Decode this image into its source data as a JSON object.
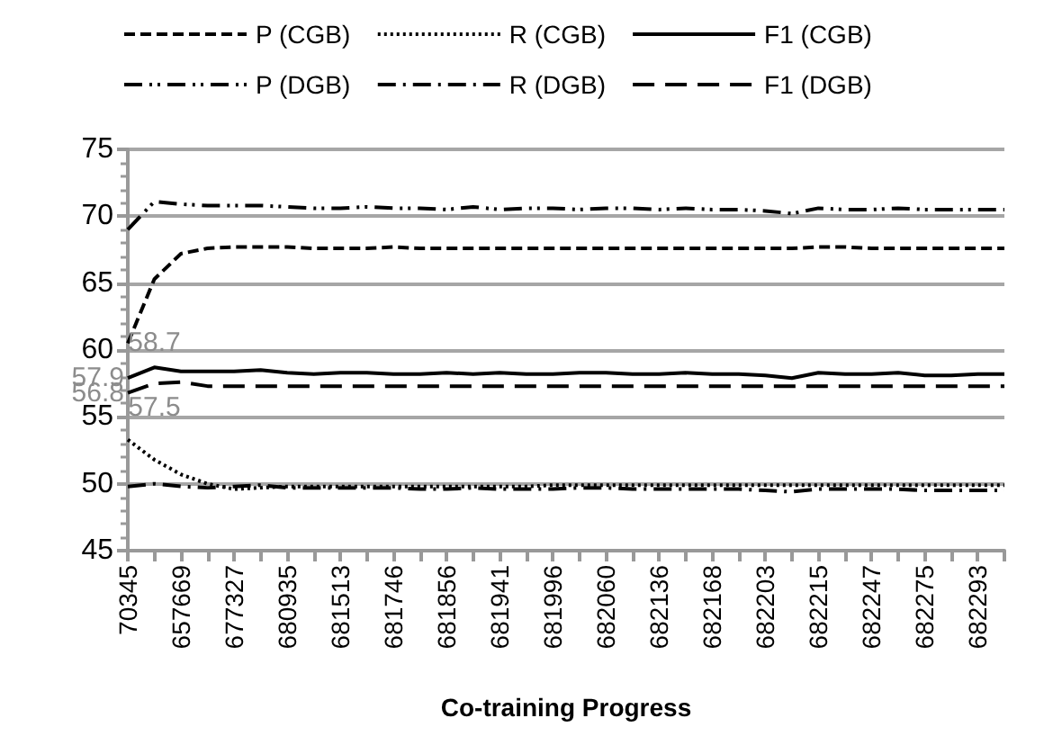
{
  "chart_data": {
    "type": "line",
    "xlabel": "Co-training Progress",
    "categories": [
      "70345",
      null,
      "657669",
      null,
      "677327",
      null,
      "680935",
      null,
      "681513",
      null,
      "681746",
      null,
      "681856",
      null,
      "681941",
      null,
      "681996",
      null,
      "682060",
      null,
      "682136",
      null,
      "682168",
      null,
      "682203",
      null,
      "682215",
      null,
      "682247",
      null,
      "682275",
      null,
      "682293",
      null
    ],
    "series": [
      {
        "name": "P (CGB)",
        "color": "#000000",
        "line_style": "dashed",
        "values": [
          60.5,
          65.3,
          67.2,
          67.6,
          67.7,
          67.7,
          67.7,
          67.6,
          67.6,
          67.6,
          67.7,
          67.6,
          67.6,
          67.6,
          67.6,
          67.6,
          67.6,
          67.6,
          67.6,
          67.6,
          67.6,
          67.6,
          67.6,
          67.6,
          67.6,
          67.6,
          67.7,
          67.7,
          67.6,
          67.6,
          67.6,
          67.6,
          67.6,
          67.6
        ]
      },
      {
        "name": "R (CGB)",
        "color": "#000000",
        "line_style": "dotted",
        "values": [
          53.3,
          51.8,
          50.7,
          50.0,
          49.6,
          49.7,
          49.8,
          49.8,
          49.8,
          49.8,
          49.8,
          49.8,
          49.8,
          49.8,
          49.8,
          49.8,
          49.9,
          49.9,
          49.9,
          49.9,
          49.9,
          49.9,
          49.9,
          49.9,
          49.9,
          49.9,
          49.9,
          49.9,
          49.9,
          49.9,
          49.9,
          49.9,
          49.9,
          49.9
        ]
      },
      {
        "name": "F1 (CGB)",
        "color": "#000000",
        "line_style": "solid",
        "value_labels": [
          "57.9",
          "58.7",
          null,
          null,
          null,
          null,
          null,
          null,
          null,
          null,
          null,
          null,
          null,
          null,
          null,
          null,
          null,
          null,
          null,
          null,
          null,
          null,
          null,
          null,
          null,
          null,
          null,
          null,
          null,
          null,
          null,
          null,
          null,
          null
        ],
        "values": [
          57.9,
          58.7,
          58.4,
          58.4,
          58.4,
          58.5,
          58.3,
          58.2,
          58.3,
          58.3,
          58.2,
          58.2,
          58.3,
          58.2,
          58.3,
          58.2,
          58.2,
          58.3,
          58.3,
          58.2,
          58.2,
          58.3,
          58.2,
          58.2,
          58.1,
          57.9,
          58.3,
          58.2,
          58.2,
          58.3,
          58.1,
          58.1,
          58.2,
          58.2
        ]
      },
      {
        "name": "P (DGB)",
        "color": "#000000",
        "line_style": "dashdotdot",
        "values": [
          69.0,
          71.1,
          70.9,
          70.8,
          70.8,
          70.8,
          70.7,
          70.6,
          70.6,
          70.7,
          70.6,
          70.6,
          70.5,
          70.7,
          70.5,
          70.6,
          70.6,
          70.5,
          70.6,
          70.6,
          70.5,
          70.6,
          70.5,
          70.5,
          70.4,
          70.2,
          70.6,
          70.5,
          70.5,
          70.6,
          70.5,
          70.5,
          70.5,
          70.5
        ]
      },
      {
        "name": "R (DGB)",
        "color": "#000000",
        "line_style": "dashdot",
        "values": [
          49.8,
          50.0,
          49.8,
          49.7,
          49.8,
          49.9,
          49.7,
          49.7,
          49.7,
          49.7,
          49.7,
          49.6,
          49.6,
          49.7,
          49.6,
          49.6,
          49.6,
          49.7,
          49.7,
          49.6,
          49.6,
          49.6,
          49.6,
          49.6,
          49.5,
          49.4,
          49.6,
          49.6,
          49.6,
          49.6,
          49.5,
          49.5,
          49.5,
          49.5
        ]
      },
      {
        "name": "F1 (DGB)",
        "color": "#000000",
        "line_style": "longdash",
        "value_labels": [
          "56.8",
          "57.5",
          null,
          null,
          null,
          null,
          null,
          null,
          null,
          null,
          null,
          null,
          null,
          null,
          null,
          null,
          null,
          null,
          null,
          null,
          null,
          null,
          null,
          null,
          null,
          null,
          null,
          null,
          null,
          null,
          null,
          null,
          null,
          null
        ],
        "values": [
          56.8,
          57.5,
          57.6,
          57.3,
          57.3,
          57.3,
          57.3,
          57.3,
          57.3,
          57.3,
          57.3,
          57.3,
          57.3,
          57.3,
          57.3,
          57.3,
          57.3,
          57.3,
          57.3,
          57.3,
          57.3,
          57.3,
          57.3,
          57.3,
          57.3,
          57.3,
          57.3,
          57.3,
          57.3,
          57.3,
          57.3,
          57.3,
          57.3,
          57.3
        ]
      }
    ],
    "ylim": [
      45,
      75
    ],
    "yticks": [
      45,
      50,
      55,
      60,
      65,
      70,
      75
    ],
    "grid": "y",
    "legend": "top",
    "marker": "none"
  }
}
